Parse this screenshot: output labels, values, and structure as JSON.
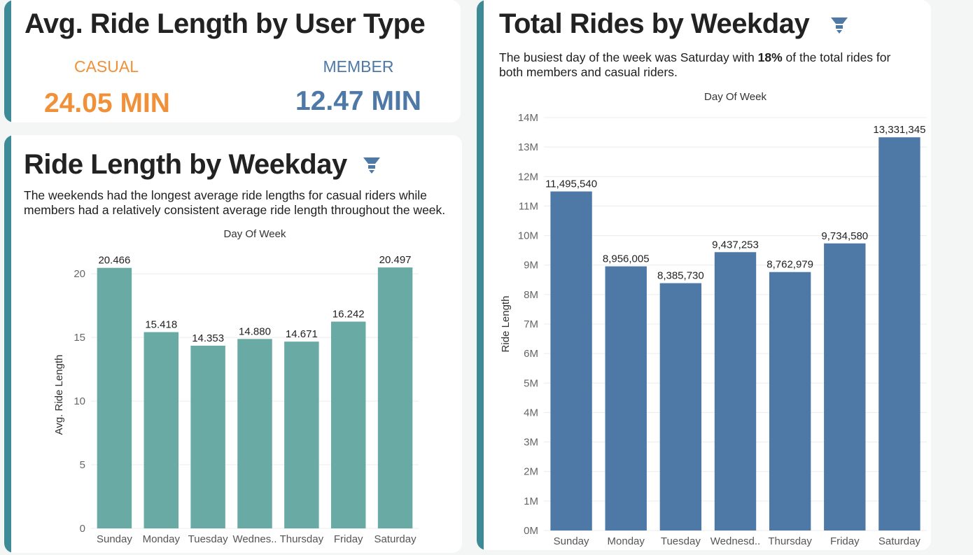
{
  "avg_card": {
    "title": "Avg. Ride Length by User Type",
    "casual_label": "CASUAL",
    "casual_value": "24.05 MIN",
    "member_label": "MEMBER",
    "member_value": "12.47 MIN",
    "casual_color": "#f0913a",
    "member_color": "#4e79a7"
  },
  "weekday_card": {
    "title": "Ride Length by Weekday",
    "subtitle_line1": "The weekends had the longest average ride lengths for casual riders while",
    "subtitle_line2": "members had a relatively consistent average ride length throughout the week.",
    "filter_icon": "filter-icon"
  },
  "total_card": {
    "title": "Total Rides by Weekday",
    "subtitle_line1_pre": "The busiest day of the week was Saturday with ",
    "subtitle_line1_bold": "18%",
    "subtitle_line1_post": " of the total rides for",
    "subtitle_line2": "both members and casual riders.",
    "filter_icon": "filter-icon"
  },
  "chart_data": [
    {
      "id": "avg-ride-length-by-weekday",
      "type": "bar",
      "title": "Ride Length by Weekday",
      "xlabel": "Day Of Week",
      "ylabel": "Avg. Ride Length",
      "categories": [
        "Sunday",
        "Monday",
        "Tuesday",
        "Wednes..",
        "Thursday",
        "Friday",
        "Saturday"
      ],
      "values": [
        20.466,
        15.418,
        14.353,
        14.88,
        14.671,
        16.242,
        20.497
      ],
      "value_labels": [
        "20.466",
        "15.418",
        "14.353",
        "14.880",
        "14.671",
        "16.242",
        "20.497"
      ],
      "yticks": [
        0,
        5,
        10,
        15,
        20
      ],
      "ytick_labels": [
        "0",
        "5",
        "10",
        "15",
        "20"
      ],
      "ylim": [
        0,
        21
      ],
      "grid": true,
      "color": "#6aaaa4"
    },
    {
      "id": "total-rides-by-weekday",
      "type": "bar",
      "title": "Total Rides by Weekday",
      "xlabel": "Day Of Week",
      "ylabel": "Ride Length",
      "categories": [
        "Sunday",
        "Monday",
        "Tuesday",
        "Wednesd..",
        "Thursday",
        "Friday",
        "Saturday"
      ],
      "values": [
        11495540,
        8956005,
        8385730,
        9437253,
        8762979,
        9734580,
        13331345
      ],
      "value_labels": [
        "11,495,540",
        "8,956,005",
        "8,385,730",
        "9,437,253",
        "8,762,979",
        "9,734,580",
        "13,331,345"
      ],
      "yticks": [
        0,
        1000000,
        2000000,
        3000000,
        4000000,
        5000000,
        6000000,
        7000000,
        8000000,
        9000000,
        10000000,
        11000000,
        12000000,
        13000000,
        14000000
      ],
      "ytick_labels": [
        "0M",
        "1M",
        "2M",
        "3M",
        "4M",
        "5M",
        "6M",
        "7M",
        "8M",
        "9M",
        "10M",
        "11M",
        "12M",
        "13M",
        "14M"
      ],
      "ylim": [
        0,
        14000000
      ],
      "grid": true,
      "color": "#4e79a7"
    }
  ]
}
